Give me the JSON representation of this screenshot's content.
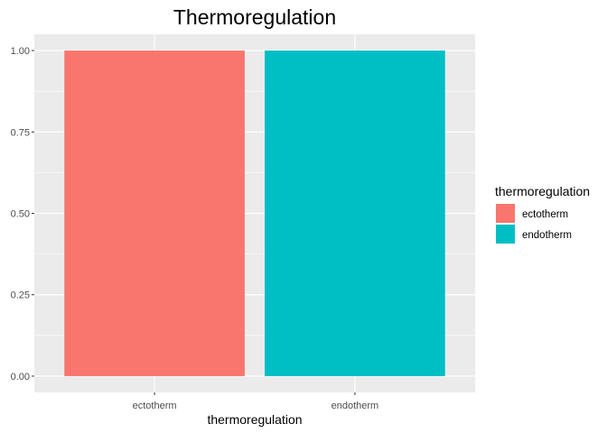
{
  "chart_data": {
    "type": "bar",
    "title": "Thermoregulation",
    "xlabel": "thermoregulation",
    "ylabel": "",
    "categories": [
      "ectotherm",
      "endotherm"
    ],
    "values": [
      1.0,
      1.0
    ],
    "colors": [
      "#F8766D",
      "#00BFC4"
    ],
    "ylim": [
      -0.05,
      1.05
    ],
    "yticks": [
      "0.00",
      "0.25",
      "0.50",
      "0.75",
      "1.00"
    ],
    "ytick_values": [
      0,
      0.25,
      0.5,
      0.75,
      1.0
    ],
    "grid": true,
    "panel_background": "#EBEBEB",
    "legend": {
      "title": "thermoregulation",
      "placement": "right",
      "entries": [
        "ectotherm",
        "endotherm"
      ]
    }
  }
}
